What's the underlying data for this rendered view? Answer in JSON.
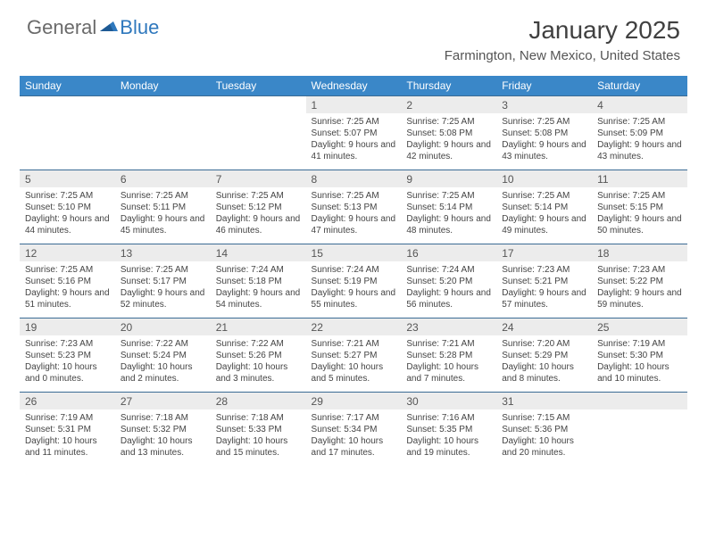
{
  "logo": {
    "general": "General",
    "blue": "Blue"
  },
  "title": "January 2025",
  "location": "Farmington, New Mexico, United States",
  "colors": {
    "header_bg": "#3a87c8",
    "header_text": "#ffffff",
    "daynum_bg": "#ececec",
    "border": "#3a6b94",
    "logo_blue": "#2f78bd",
    "logo_gray": "#6a6a6a"
  },
  "weekdays": [
    "Sunday",
    "Monday",
    "Tuesday",
    "Wednesday",
    "Thursday",
    "Friday",
    "Saturday"
  ],
  "weeks": [
    {
      "days": [
        null,
        null,
        null,
        {
          "n": "1",
          "sr": "7:25 AM",
          "ss": "5:07 PM",
          "dl": "9 hours and 41 minutes."
        },
        {
          "n": "2",
          "sr": "7:25 AM",
          "ss": "5:08 PM",
          "dl": "9 hours and 42 minutes."
        },
        {
          "n": "3",
          "sr": "7:25 AM",
          "ss": "5:08 PM",
          "dl": "9 hours and 43 minutes."
        },
        {
          "n": "4",
          "sr": "7:25 AM",
          "ss": "5:09 PM",
          "dl": "9 hours and 43 minutes."
        }
      ]
    },
    {
      "days": [
        {
          "n": "5",
          "sr": "7:25 AM",
          "ss": "5:10 PM",
          "dl": "9 hours and 44 minutes."
        },
        {
          "n": "6",
          "sr": "7:25 AM",
          "ss": "5:11 PM",
          "dl": "9 hours and 45 minutes."
        },
        {
          "n": "7",
          "sr": "7:25 AM",
          "ss": "5:12 PM",
          "dl": "9 hours and 46 minutes."
        },
        {
          "n": "8",
          "sr": "7:25 AM",
          "ss": "5:13 PM",
          "dl": "9 hours and 47 minutes."
        },
        {
          "n": "9",
          "sr": "7:25 AM",
          "ss": "5:14 PM",
          "dl": "9 hours and 48 minutes."
        },
        {
          "n": "10",
          "sr": "7:25 AM",
          "ss": "5:14 PM",
          "dl": "9 hours and 49 minutes."
        },
        {
          "n": "11",
          "sr": "7:25 AM",
          "ss": "5:15 PM",
          "dl": "9 hours and 50 minutes."
        }
      ]
    },
    {
      "days": [
        {
          "n": "12",
          "sr": "7:25 AM",
          "ss": "5:16 PM",
          "dl": "9 hours and 51 minutes."
        },
        {
          "n": "13",
          "sr": "7:25 AM",
          "ss": "5:17 PM",
          "dl": "9 hours and 52 minutes."
        },
        {
          "n": "14",
          "sr": "7:24 AM",
          "ss": "5:18 PM",
          "dl": "9 hours and 54 minutes."
        },
        {
          "n": "15",
          "sr": "7:24 AM",
          "ss": "5:19 PM",
          "dl": "9 hours and 55 minutes."
        },
        {
          "n": "16",
          "sr": "7:24 AM",
          "ss": "5:20 PM",
          "dl": "9 hours and 56 minutes."
        },
        {
          "n": "17",
          "sr": "7:23 AM",
          "ss": "5:21 PM",
          "dl": "9 hours and 57 minutes."
        },
        {
          "n": "18",
          "sr": "7:23 AM",
          "ss": "5:22 PM",
          "dl": "9 hours and 59 minutes."
        }
      ]
    },
    {
      "days": [
        {
          "n": "19",
          "sr": "7:23 AM",
          "ss": "5:23 PM",
          "dl": "10 hours and 0 minutes."
        },
        {
          "n": "20",
          "sr": "7:22 AM",
          "ss": "5:24 PM",
          "dl": "10 hours and 2 minutes."
        },
        {
          "n": "21",
          "sr": "7:22 AM",
          "ss": "5:26 PM",
          "dl": "10 hours and 3 minutes."
        },
        {
          "n": "22",
          "sr": "7:21 AM",
          "ss": "5:27 PM",
          "dl": "10 hours and 5 minutes."
        },
        {
          "n": "23",
          "sr": "7:21 AM",
          "ss": "5:28 PM",
          "dl": "10 hours and 7 minutes."
        },
        {
          "n": "24",
          "sr": "7:20 AM",
          "ss": "5:29 PM",
          "dl": "10 hours and 8 minutes."
        },
        {
          "n": "25",
          "sr": "7:19 AM",
          "ss": "5:30 PM",
          "dl": "10 hours and 10 minutes."
        }
      ]
    },
    {
      "days": [
        {
          "n": "26",
          "sr": "7:19 AM",
          "ss": "5:31 PM",
          "dl": "10 hours and 11 minutes."
        },
        {
          "n": "27",
          "sr": "7:18 AM",
          "ss": "5:32 PM",
          "dl": "10 hours and 13 minutes."
        },
        {
          "n": "28",
          "sr": "7:18 AM",
          "ss": "5:33 PM",
          "dl": "10 hours and 15 minutes."
        },
        {
          "n": "29",
          "sr": "7:17 AM",
          "ss": "5:34 PM",
          "dl": "10 hours and 17 minutes."
        },
        {
          "n": "30",
          "sr": "7:16 AM",
          "ss": "5:35 PM",
          "dl": "10 hours and 19 minutes."
        },
        {
          "n": "31",
          "sr": "7:15 AM",
          "ss": "5:36 PM",
          "dl": "10 hours and 20 minutes."
        },
        null
      ]
    }
  ],
  "labels": {
    "sunrise": "Sunrise: ",
    "sunset": "Sunset: ",
    "daylight": "Daylight: "
  }
}
